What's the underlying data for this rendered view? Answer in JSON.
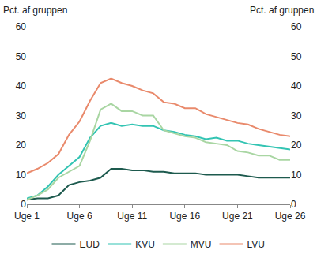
{
  "chart_data": {
    "type": "line",
    "ylabel": "Pct. af gruppen",
    "y2label": "Pct. af gruppen",
    "categories": [
      "Uge 1",
      null,
      null,
      null,
      null,
      "Uge 6",
      null,
      null,
      null,
      null,
      "Uge 11",
      null,
      null,
      null,
      null,
      "Uge 16",
      null,
      null,
      null,
      null,
      "Uge 21",
      null,
      null,
      null,
      null,
      "Uge 26"
    ],
    "series": [
      {
        "name": "EUD",
        "color": "#1d5a4e",
        "values": [
          1.5,
          2,
          2,
          3,
          6.5,
          7.5,
          8,
          9,
          12,
          12,
          11.5,
          11.5,
          11,
          11,
          10.5,
          10.5,
          10.5,
          10,
          10,
          10,
          10,
          9.5,
          9,
          9,
          9,
          9
        ]
      },
      {
        "name": "KVU",
        "color": "#33c4b3",
        "values": [
          2,
          3,
          6,
          10,
          13,
          16,
          22.5,
          26.5,
          27.5,
          26.5,
          27,
          26.5,
          26.5,
          25,
          24.5,
          23.5,
          23,
          22,
          22.5,
          21.5,
          21.5,
          20.5,
          20,
          19.5,
          19,
          18.5
        ]
      },
      {
        "name": "MVU",
        "color": "#a9d6a3",
        "values": [
          1.5,
          3,
          5,
          9,
          11,
          13,
          21.5,
          32,
          34,
          31.5,
          31.5,
          30,
          30,
          25,
          24,
          23,
          22.5,
          21,
          20.5,
          20,
          18,
          17.5,
          16.5,
          16.5,
          15,
          15
        ]
      },
      {
        "name": "LVU",
        "color": "#e98a6c",
        "values": [
          10.5,
          12,
          14,
          17,
          23.5,
          28,
          35,
          41,
          42.5,
          41,
          40,
          38.5,
          37.5,
          34.5,
          34,
          32.5,
          32.5,
          30.5,
          29.5,
          28.5,
          27.5,
          27,
          25.5,
          24.5,
          23.5,
          23
        ]
      }
    ],
    "ylim": [
      0,
      60
    ],
    "yticks": [
      0,
      10,
      20,
      30,
      40,
      50,
      60
    ],
    "y2lim": [
      0,
      60
    ],
    "y2ticks": [
      0,
      10,
      20,
      30,
      40,
      50,
      60
    ],
    "grid": false,
    "legend": "bottom"
  }
}
